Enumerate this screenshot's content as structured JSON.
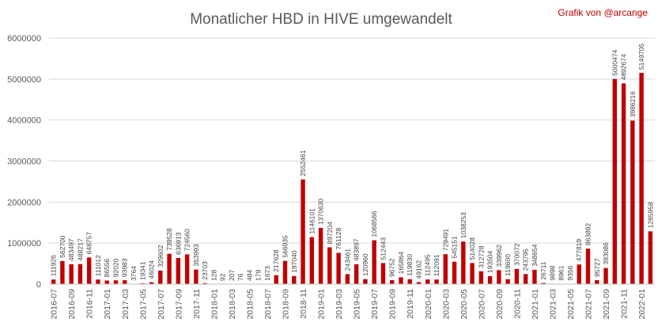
{
  "chart_data": {
    "type": "bar",
    "title": "Monatlicher HBD in HIVE umgewandelt",
    "credit": "Grafik von @arcange",
    "bar_color": "#c00000",
    "grid": true,
    "ylim": [
      0,
      6000000
    ],
    "yticks": [
      "0",
      "1000000",
      "2000000",
      "3000000",
      "4000000",
      "5000000",
      "6000000"
    ],
    "categories": [
      "2016-07",
      "2016-08",
      "2016-09",
      "2016-10",
      "2016-11",
      "2016-12",
      "2017-01",
      "2017-02",
      "2017-03",
      "2017-04",
      "2017-05",
      "2017-06",
      "2017-07",
      "2017-08",
      "2017-09",
      "2017-10",
      "2017-11",
      "2017-12",
      "2018-01",
      "2018-02",
      "2018-03",
      "2018-04",
      "2018-05",
      "2018-06",
      "2018-07",
      "2018-08",
      "2018-09",
      "2018-10",
      "2018-11",
      "2018-12",
      "2019-01",
      "2019-02",
      "2019-03",
      "2019-04",
      "2019-05",
      "2019-06",
      "2019-07",
      "2019-08",
      "2019-09",
      "2019-10",
      "2019-11",
      "2019-12",
      "2020-01",
      "2020-02",
      "2020-03",
      "2020-04",
      "2020-05",
      "2020-06",
      "2020-07",
      "2020-08",
      "2020-09",
      "2020-10",
      "2020-11",
      "2020-12",
      "2021-01",
      "2021-02",
      "2021-03",
      "2021-04",
      "2021-05",
      "2021-06",
      "2021-07",
      "2021-08",
      "2021-09",
      "2021-10",
      "2021-11",
      "2021-12",
      "2022-01",
      "2022-02"
    ],
    "values": [
      111926,
      562700,
      483497,
      488217,
      648757,
      111012,
      86556,
      92020,
      93983,
      3764,
      19341,
      46024,
      329602,
      739528,
      636913,
      724560,
      353993,
      23703,
      128,
      92,
      207,
      76,
      484,
      179,
      1673,
      217628,
      566935,
      197040,
      2552461,
      1146101,
      1370630,
      897204,
      761128,
      243461,
      483897,
      120960,
      1068566,
      512443,
      96752,
      165864,
      119830,
      49162,
      112495,
      112091,
      729491,
      545151,
      1038253,
      514028,
      312728,
      193504,
      339962,
      119600,
      370072,
      243795,
      348654,
      26711,
      9898,
      8961,
      9356,
      477819,
      863892,
      95727,
      393086,
      5000474,
      4892674,
      3986216,
      5149705,
      1285958
    ],
    "xtick_labels": [
      "2016-07",
      "2016-09",
      "2016-11",
      "2017-01",
      "2017-03",
      "2017-05",
      "2017-07",
      "2017-09",
      "2017-11",
      "2018-01",
      "2018-03",
      "2018-05",
      "2018-07",
      "2018-09",
      "2018-11",
      "2019-01",
      "2019-03",
      "2019-05",
      "2019-07",
      "2019-09",
      "2019-11",
      "2020-01",
      "2020-03",
      "2020-05",
      "2020-07",
      "2020-09",
      "2020-11",
      "2021-01",
      "2021-03",
      "2021-05",
      "2021-07",
      "2021-09",
      "2021-11",
      "2022-01"
    ]
  }
}
